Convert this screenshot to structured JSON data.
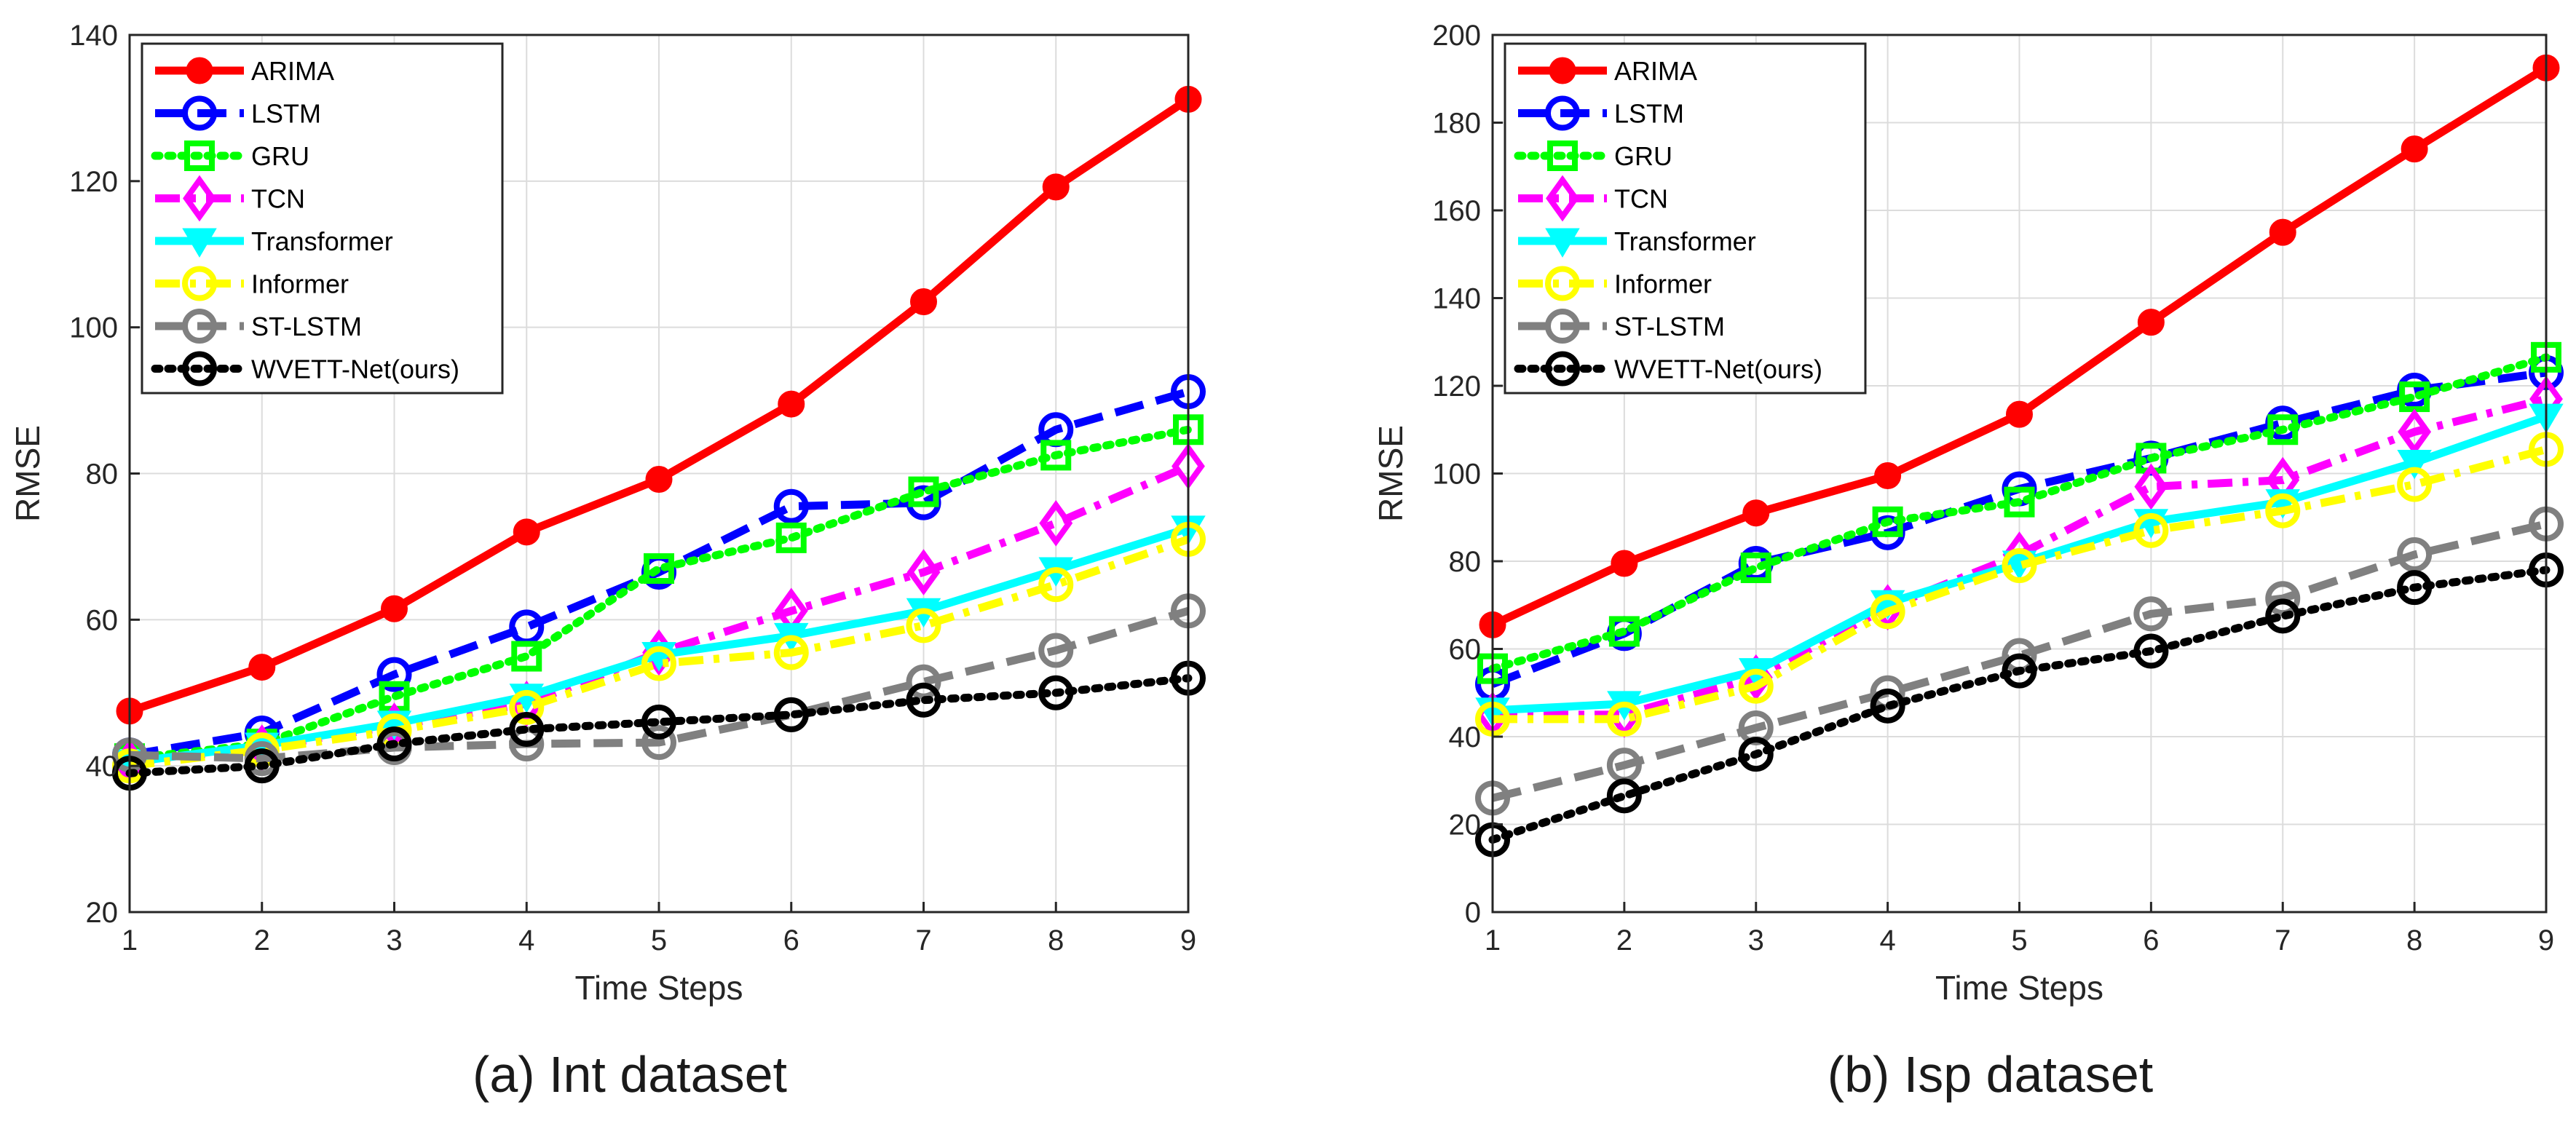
{
  "chart_data": [
    {
      "type": "line",
      "caption": "(a) Int dataset",
      "xlabel": "Time Steps",
      "ylabel": "RMSE",
      "x": [
        1,
        2,
        3,
        4,
        5,
        6,
        7,
        8,
        9
      ],
      "xlim": [
        1,
        9
      ],
      "ylim": [
        20,
        140
      ],
      "yticks": [
        20,
        40,
        60,
        80,
        100,
        120,
        140
      ],
      "grid": true,
      "legend_position": "top-left",
      "series": [
        {
          "name": "ARIMA",
          "color": "#ff0000",
          "dash": "solid",
          "marker": "filled-circle",
          "values": [
            47.5,
            53.5,
            61.5,
            72.0,
            79.2,
            89.5,
            103.5,
            119.2,
            131.2
          ]
        },
        {
          "name": "LSTM",
          "color": "#0000ff",
          "dash": "dashed",
          "marker": "open-circle",
          "values": [
            41.5,
            44.5,
            52.5,
            59.0,
            66.5,
            75.5,
            76.0,
            86.0,
            91.2
          ]
        },
        {
          "name": "GRU",
          "color": "#00ff00",
          "dash": "dotted",
          "marker": "open-square",
          "values": [
            41.0,
            43.0,
            49.5,
            55.0,
            67.0,
            71.2,
            77.5,
            82.5,
            86.0
          ]
        },
        {
          "name": "TCN",
          "color": "#ff00ff",
          "dash": "dashdot",
          "marker": "open-diamond",
          "values": [
            40.5,
            42.5,
            45.5,
            48.5,
            55.5,
            61.2,
            66.5,
            73.2,
            81.0
          ]
        },
        {
          "name": "Transformer",
          "color": "#00ffff",
          "dash": "solid",
          "marker": "filled-triangle-down",
          "values": [
            40.5,
            42.8,
            45.8,
            49.5,
            55.2,
            57.8,
            61.2,
            66.8,
            72.5
          ]
        },
        {
          "name": "Informer",
          "color": "#ffff00",
          "dash": "dashdot",
          "marker": "open-circle",
          "values": [
            40.0,
            42.2,
            44.8,
            48.0,
            54.0,
            55.5,
            59.2,
            64.8,
            71.0
          ]
        },
        {
          "name": "ST-LSTM",
          "color": "#808080",
          "dash": "dashed",
          "marker": "open-circle",
          "values": [
            41.5,
            41.0,
            42.5,
            43.0,
            43.2,
            47.0,
            51.5,
            55.8,
            61.2
          ]
        },
        {
          "name": "WVETT-Net(ours)",
          "color": "#000000",
          "dash": "dotted",
          "marker": "open-circle",
          "values": [
            39.0,
            40.0,
            43.0,
            45.0,
            46.0,
            47.0,
            49.0,
            50.0,
            52.0
          ]
        }
      ]
    },
    {
      "type": "line",
      "caption": "(b) Isp dataset",
      "xlabel": "Time Steps",
      "ylabel": "RMSE",
      "x": [
        1,
        2,
        3,
        4,
        5,
        6,
        7,
        8,
        9
      ],
      "xlim": [
        1,
        9
      ],
      "ylim": [
        0,
        200
      ],
      "yticks": [
        0,
        20,
        40,
        60,
        80,
        100,
        120,
        140,
        160,
        180,
        200
      ],
      "grid": true,
      "legend_position": "top-left",
      "series": [
        {
          "name": "ARIMA",
          "color": "#ff0000",
          "dash": "solid",
          "marker": "filled-circle",
          "values": [
            65.5,
            79.5,
            91.0,
            99.5,
            113.5,
            134.5,
            155.0,
            174.0,
            192.5
          ]
        },
        {
          "name": "LSTM",
          "color": "#0000ff",
          "dash": "dashed",
          "marker": "open-circle",
          "values": [
            52.0,
            63.5,
            79.5,
            86.5,
            96.5,
            103.5,
            111.5,
            119.0,
            123.0
          ]
        },
        {
          "name": "GRU",
          "color": "#00ff00",
          "dash": "dotted",
          "marker": "open-square",
          "values": [
            55.5,
            64.0,
            78.5,
            89.0,
            93.5,
            103.5,
            110.0,
            117.5,
            126.5
          ]
        },
        {
          "name": "TCN",
          "color": "#ff00ff",
          "dash": "dashdot",
          "marker": "open-diamond",
          "values": [
            45.0,
            45.0,
            53.5,
            69.5,
            81.5,
            97.0,
            98.5,
            109.5,
            117.0
          ]
        },
        {
          "name": "Transformer",
          "color": "#00ffff",
          "dash": "solid",
          "marker": "filled-triangle-down",
          "values": [
            46.0,
            47.5,
            55.0,
            70.5,
            79.5,
            89.0,
            93.5,
            102.5,
            113.0
          ]
        },
        {
          "name": "Informer",
          "color": "#ffff00",
          "dash": "dashdot",
          "marker": "open-circle",
          "values": [
            44.0,
            44.0,
            51.5,
            68.5,
            79.0,
            87.0,
            91.5,
            97.5,
            105.5
          ]
        },
        {
          "name": "ST-LSTM",
          "color": "#808080",
          "dash": "dashed",
          "marker": "open-circle",
          "values": [
            26.0,
            33.5,
            42.0,
            50.0,
            58.5,
            68.0,
            71.5,
            81.5,
            88.5
          ]
        },
        {
          "name": "WVETT-Net(ours)",
          "color": "#000000",
          "dash": "dotted",
          "marker": "open-circle",
          "values": [
            16.5,
            26.5,
            36.0,
            47.0,
            55.0,
            59.5,
            67.5,
            74.0,
            78.0
          ]
        }
      ]
    }
  ]
}
